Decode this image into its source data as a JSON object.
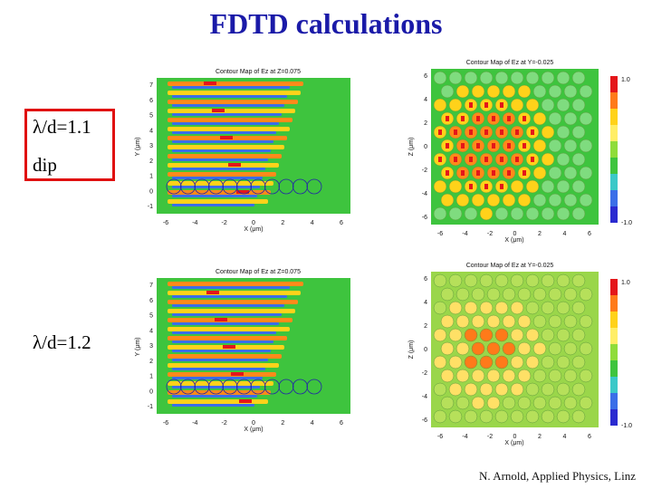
{
  "slide": {
    "title": "FDTD calculations",
    "credit": "N. Arnold, Applied Physics, Linz"
  },
  "rows": [
    {
      "label": "λ/d=1.1",
      "sublabel": "dip",
      "highlighted": true
    },
    {
      "label": "λ/d=1.2",
      "sublabel": "",
      "highlighted": false
    }
  ],
  "panels": [
    {
      "title": "Contour Map of Ez at Z=0.075",
      "xlabel": "X (μm)",
      "ylabel": "Y (μm)",
      "xticks": [
        "-6",
        "-4",
        "-2",
        "0",
        "2",
        "4",
        "6"
      ],
      "yticks": [
        "7",
        "6",
        "5",
        "4",
        "3",
        "2",
        "1",
        "0",
        "-1"
      ]
    },
    {
      "title": "Contour Map of Ez at Y=-0.025",
      "xlabel": "X (μm)",
      "ylabel": "Z (μm)",
      "xticks": [
        "-6",
        "-4",
        "-2",
        "0",
        "2",
        "4",
        "6"
      ],
      "yticks": [
        "6",
        "4",
        "2",
        "0",
        "-2",
        "-4",
        "-6"
      ],
      "cbar_top": "1.0",
      "cbar_bottom": "-1.0"
    },
    {
      "title": "Contour Map of Ez at Z=0.075",
      "xlabel": "X (μm)",
      "ylabel": "Y (μm)",
      "xticks": [
        "-6",
        "-4",
        "-2",
        "0",
        "2",
        "4",
        "6"
      ],
      "yticks": [
        "7",
        "6",
        "5",
        "4",
        "3",
        "2",
        "1",
        "0",
        "-1"
      ]
    },
    {
      "title": "Contour Map of Ez at Y=-0.025",
      "xlabel": "X (μm)",
      "ylabel": "Z (μm)",
      "xticks": [
        "-6",
        "-4",
        "-2",
        "0",
        "2",
        "4",
        "6"
      ],
      "yticks": [
        "6",
        "4",
        "2",
        "0",
        "-2",
        "-4",
        "-6"
      ],
      "cbar_top": "1.0",
      "cbar_bottom": "-1.0"
    }
  ],
  "colors": {
    "title": "#1a1aa8",
    "box": "#e01010",
    "field_bg": "#3ec43e",
    "field_bg_weak": "#9ad64a"
  }
}
